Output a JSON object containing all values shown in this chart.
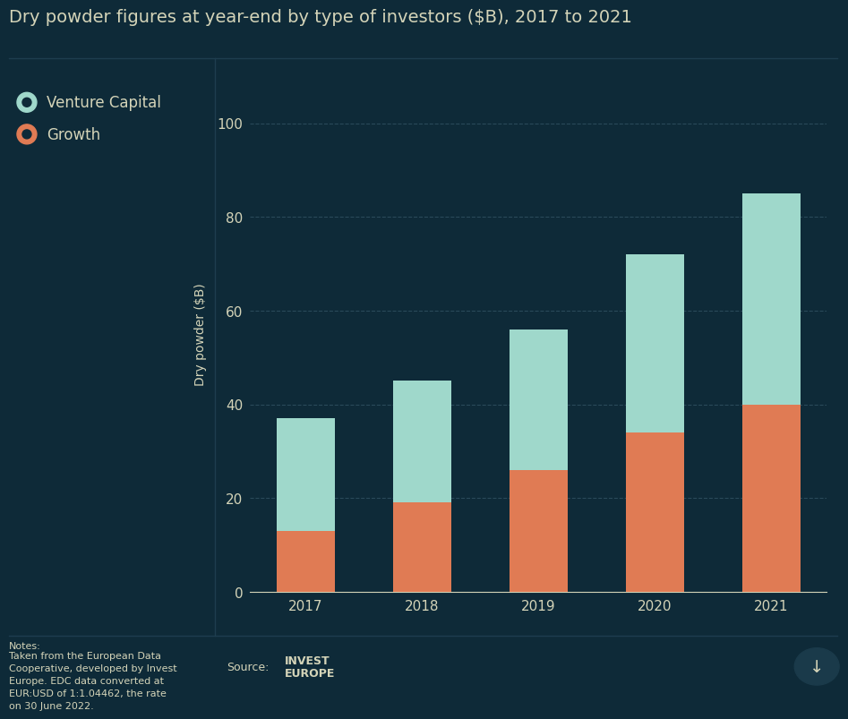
{
  "title": "Dry powder figures at year-end by type of investors ($B), 2017 to 2021",
  "years": [
    "2017",
    "2018",
    "2019",
    "2020",
    "2021"
  ],
  "growth": [
    13,
    19,
    26,
    34,
    40
  ],
  "venture_capital": [
    24,
    26,
    30,
    38,
    45
  ],
  "vc_color": "#9FD8CB",
  "growth_color": "#E07B54",
  "background_color": "#0e2a38",
  "text_color": "#d4d4b8",
  "grid_color": "#1e3d4f",
  "ylabel": "Dry powder ($B)",
  "ylim": [
    0,
    110
  ],
  "yticks": [
    0,
    20,
    40,
    60,
    80,
    100
  ],
  "legend_vc": "Venture Capital",
  "legend_growth": "Growth",
  "notes_line1": "Notes:",
  "notes_body": "Taken from the European Data\nCooperative, developed by Invest\nEurope. EDC data converted at\nEUR:USD of 1:1.04462, the rate\non 30 June 2022.",
  "source_label": "Source:",
  "bar_width": 0.5,
  "title_fontsize": 14,
  "axis_fontsize": 10,
  "tick_fontsize": 11,
  "legend_fontsize": 12,
  "notes_fontsize": 8
}
